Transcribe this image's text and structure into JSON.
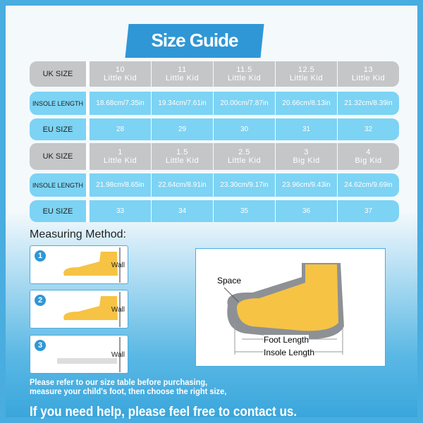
{
  "title": "Size Guide",
  "tables": [
    {
      "uk_label": "UK SIZE",
      "insole_label": "INSOLE LENGTH",
      "eu_label": "EU SIZE",
      "uk": [
        {
          "size": "10",
          "group": "Little Kid"
        },
        {
          "size": "11",
          "group": "Little Kid"
        },
        {
          "size": "11.5",
          "group": "Little Kid"
        },
        {
          "size": "12.5",
          "group": "Little Kid"
        },
        {
          "size": "13",
          "group": "Little Kid"
        }
      ],
      "insole": [
        "18.68cm/7.35in",
        "19.34cm/7.61in",
        "20.00cm/7.87in",
        "20.66cm/8.13in",
        "21.32cm/8.39in"
      ],
      "eu": [
        "28",
        "29",
        "30",
        "31",
        "32"
      ]
    },
    {
      "uk_label": "UK SIZE",
      "insole_label": "INSOLE LENGTH",
      "eu_label": "EU SIZE",
      "uk": [
        {
          "size": "1",
          "group": "Little Kid"
        },
        {
          "size": "1.5",
          "group": "Little Kid"
        },
        {
          "size": "2.5",
          "group": "Little Kid"
        },
        {
          "size": "3",
          "group": "Big Kid"
        },
        {
          "size": "4",
          "group": "Big Kid"
        }
      ],
      "insole": [
        "21.98cm/8.65in",
        "22.64cm/8.91in",
        "23.30cm/9.17in",
        "23.96cm/9.43in",
        "24.62cm/9.69in"
      ],
      "eu": [
        "33",
        "34",
        "35",
        "36",
        "37"
      ]
    }
  ],
  "measuring": {
    "title": "Measuring Method:",
    "steps": [
      {
        "num": "1",
        "wall": "Wall"
      },
      {
        "num": "2",
        "wall": "Wall"
      },
      {
        "num": "3",
        "wall": "Wall"
      }
    ]
  },
  "diagram": {
    "space": "Space",
    "foot_length": "Foot Length",
    "insole_length": "Insole Length"
  },
  "footer": {
    "line1": "Please refer to our size table before purchasing,",
    "line2": "measure your child's foot, then choose the right size,",
    "line3": "If you need help, please feel free to contact us."
  },
  "colors": {
    "accent": "#2f97d6",
    "gray_row": "#c4c6c8",
    "blue_row": "#7cd3f4",
    "foot": "#f6c344"
  }
}
